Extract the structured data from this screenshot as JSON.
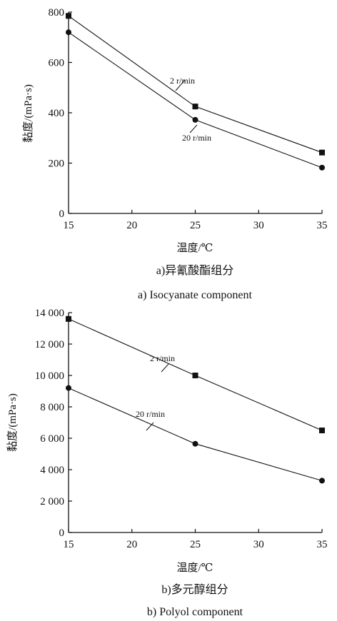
{
  "chart_data": [
    {
      "type": "line",
      "xlabel": "温度/℃",
      "ylabel": "黏度/(mPa·s)",
      "xlim": [
        15,
        35
      ],
      "ylim": [
        0,
        800
      ],
      "xticks": [
        15,
        20,
        25,
        30,
        35
      ],
      "yticks": [
        0,
        200,
        400,
        600,
        800
      ],
      "ytick_labels": [
        "0",
        "200",
        "400",
        "600",
        "800"
      ],
      "caption_cn": "a)异氰酸酯组分",
      "caption_en": "a) Isocyanate component",
      "series": [
        {
          "name": "2 r/min",
          "marker": "square",
          "x": [
            15,
            25,
            35
          ],
          "y": [
            785,
            425,
            242
          ]
        },
        {
          "name": "20 r/min",
          "marker": "circle",
          "x": [
            15,
            25,
            35
          ],
          "y": [
            720,
            372,
            182
          ]
        }
      ]
    },
    {
      "type": "line",
      "xlabel": "温度/℃",
      "ylabel": "黏度/(mPa·s)",
      "xlim": [
        15,
        35
      ],
      "ylim": [
        0,
        14000
      ],
      "xticks": [
        15,
        20,
        25,
        30,
        35
      ],
      "yticks": [
        0,
        2000,
        4000,
        6000,
        8000,
        10000,
        12000,
        14000
      ],
      "ytick_labels": [
        "0",
        "2 000",
        "4 000",
        "6 000",
        "8 000",
        "10 000",
        "12 000",
        "14 000"
      ],
      "caption_cn": "b)多元醇组分",
      "caption_en": "b) Polyol component",
      "series": [
        {
          "name": "2 r/min",
          "marker": "square",
          "x": [
            15,
            25,
            35
          ],
          "y": [
            13600,
            10000,
            6500
          ]
        },
        {
          "name": "20 r/min",
          "marker": "circle",
          "x": [
            15,
            25,
            35
          ],
          "y": [
            9200,
            5650,
            3300
          ]
        }
      ]
    }
  ]
}
